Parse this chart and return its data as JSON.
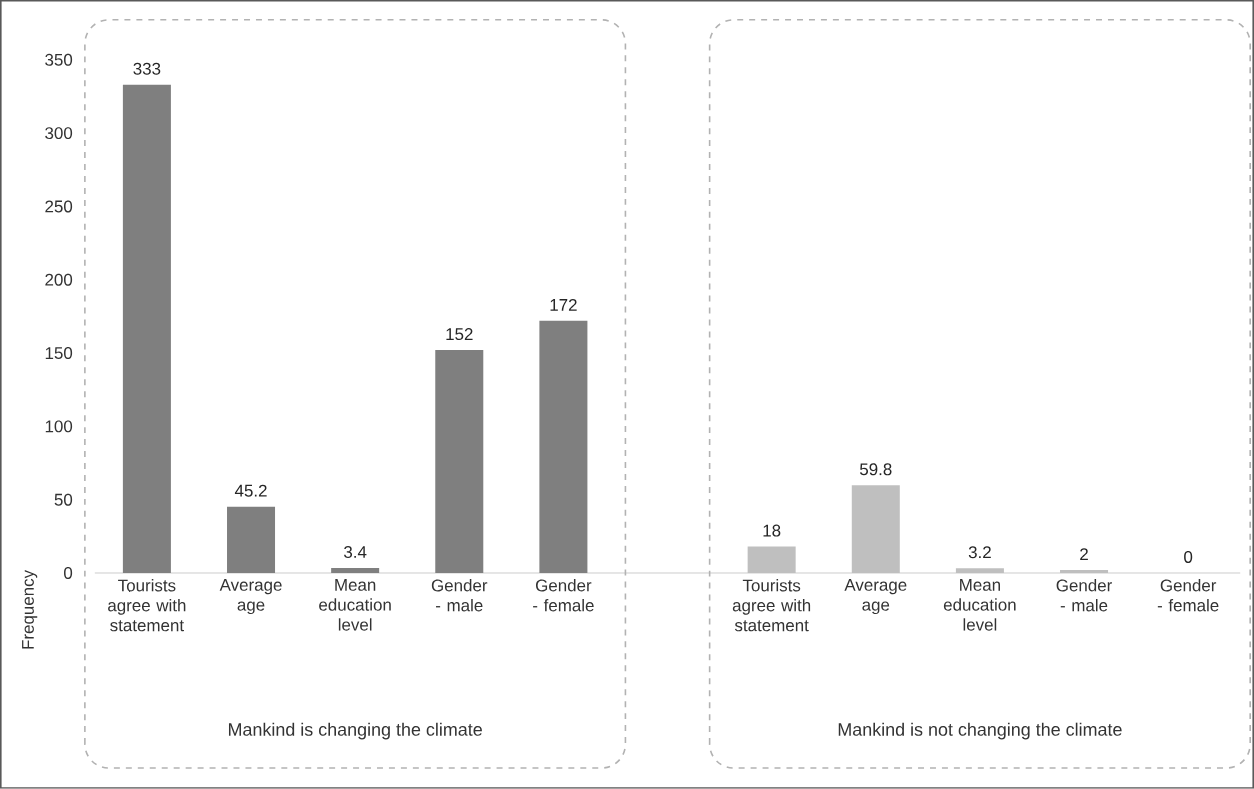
{
  "chart_data": {
    "type": "bar",
    "ylabel": "Frequency",
    "categories": [
      "Tourists agree with statement",
      "Average age",
      "Mean education level",
      "Gender - male",
      "Gender - female",
      null,
      "Tourists agree with statement",
      "Average age",
      "Mean education level",
      "Gender - male",
      "Gender - female"
    ],
    "values": [
      333,
      45.2,
      3.4,
      152,
      172,
      null,
      18,
      59.8,
      3.2,
      2,
      0
    ],
    "colors": [
      "#7f7f7f",
      "#7f7f7f",
      "#7f7f7f",
      "#7f7f7f",
      "#7f7f7f",
      null,
      "#bfbfbf",
      "#bfbfbf",
      "#bfbfbf",
      "#bfbfbf",
      "#bfbfbf"
    ],
    "ylim": [
      0,
      350
    ],
    "yticks": [
      0,
      50,
      100,
      150,
      200,
      250,
      300,
      350
    ],
    "data_labels": true,
    "annotations": [
      "Mankind is changing the climate",
      "Mankind is not changing the climate"
    ]
  }
}
